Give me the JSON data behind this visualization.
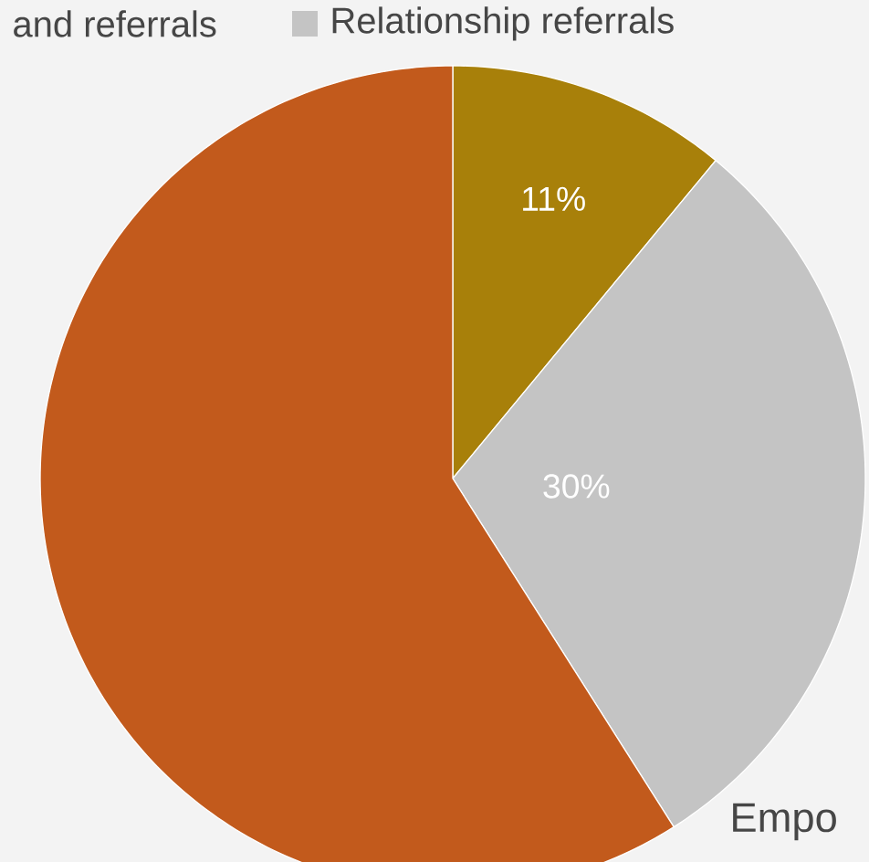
{
  "chart_data": {
    "type": "pie",
    "categories": [
      null,
      "Relationship referrals",
      null
    ],
    "values": [
      11,
      30,
      59
    ],
    "colors": [
      "#a8800a",
      "#c4c4c4",
      "#c25a1c"
    ],
    "value_labels": [
      "11%",
      "30%",
      null
    ],
    "legend": "top",
    "annotations": [
      "and referrals",
      "Empo"
    ]
  }
}
